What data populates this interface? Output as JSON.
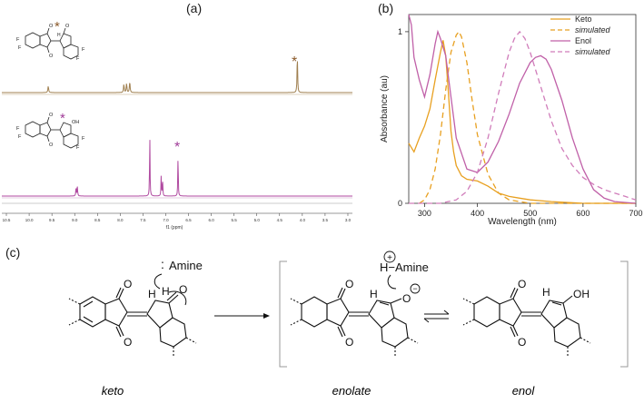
{
  "panels": {
    "a_label": "(a)",
    "b_label": "(b)",
    "c_label": "(c)"
  },
  "nmr": {
    "xlabel": "f1 (ppm)",
    "ticks": [
      "10.5",
      "10.0",
      "9.5",
      "9.0",
      "8.5",
      "8.0",
      "7.5",
      "7.0",
      "6.5",
      "6.0",
      "5.5",
      "5.0",
      "4.5",
      "4.0",
      "3.5",
      "3.0"
    ],
    "top_color": "#a08050",
    "bottom_color": "#b04aa0",
    "star_top_color": "#8b5a2b",
    "star_bottom_color": "#a03c98",
    "star": "*",
    "oh_label": "OH",
    "o_label": "O",
    "f_label": "F",
    "h_label": "H"
  },
  "chart_data": {
    "type": "line",
    "xlabel": "Wavelength (nm)",
    "ylabel": "Absorbance (au)",
    "xlim": [
      270,
      700
    ],
    "ylim": [
      0,
      1.1
    ],
    "x_ticks": [
      "300",
      "400",
      "500",
      "600",
      "700"
    ],
    "y_ticks": [
      "0",
      "1"
    ],
    "legend_position": "top-right",
    "series": [
      {
        "name": "Keto",
        "color": "#e8a020",
        "dashed": false,
        "x": [
          270,
          280,
          290,
          300,
          310,
          320,
          330,
          335,
          340,
          345,
          350,
          355,
          360,
          370,
          380,
          400,
          420,
          440,
          460,
          480,
          500,
          540,
          600,
          700
        ],
        "y": [
          0.35,
          0.3,
          0.38,
          0.45,
          0.55,
          0.72,
          0.88,
          0.95,
          0.86,
          0.65,
          0.42,
          0.3,
          0.22,
          0.16,
          0.14,
          0.13,
          0.1,
          0.06,
          0.04,
          0.03,
          0.02,
          0.01,
          0.0,
          0.0
        ]
      },
      {
        "name": "simulated",
        "color": "#e8a020",
        "dashed": true,
        "x": [
          290,
          300,
          310,
          320,
          330,
          340,
          350,
          360,
          365,
          370,
          380,
          390,
          400,
          420,
          440,
          460,
          480,
          500,
          540,
          600,
          700
        ],
        "y": [
          0.0,
          0.02,
          0.08,
          0.2,
          0.4,
          0.66,
          0.88,
          0.98,
          1.0,
          0.97,
          0.82,
          0.6,
          0.4,
          0.17,
          0.06,
          0.02,
          0.01,
          0.0,
          0.0,
          0.0,
          0.0
        ]
      },
      {
        "name": "Enol",
        "color": "#c060a8",
        "dashed": false,
        "x": [
          270,
          275,
          280,
          290,
          300,
          310,
          320,
          325,
          330,
          340,
          350,
          360,
          380,
          400,
          420,
          440,
          460,
          480,
          500,
          510,
          520,
          530,
          540,
          560,
          580,
          600,
          620,
          640,
          660,
          700
        ],
        "y": [
          1.1,
          1.04,
          0.85,
          0.72,
          0.62,
          0.75,
          0.93,
          1.0,
          0.96,
          0.86,
          0.62,
          0.38,
          0.2,
          0.18,
          0.24,
          0.36,
          0.52,
          0.7,
          0.82,
          0.85,
          0.86,
          0.84,
          0.78,
          0.6,
          0.38,
          0.2,
          0.08,
          0.03,
          0.01,
          0.0
        ]
      },
      {
        "name": "simulated",
        "color": "#d07cba",
        "dashed": true,
        "x": [
          270,
          300,
          330,
          360,
          380,
          400,
          420,
          440,
          460,
          470,
          480,
          490,
          500,
          520,
          540,
          560,
          580,
          600,
          620,
          640,
          660,
          680,
          700
        ],
        "y": [
          0.0,
          0.0,
          0.0,
          0.02,
          0.07,
          0.18,
          0.38,
          0.64,
          0.88,
          0.96,
          1.0,
          0.96,
          0.88,
          0.68,
          0.48,
          0.32,
          0.22,
          0.15,
          0.11,
          0.08,
          0.06,
          0.04,
          0.02
        ]
      }
    ]
  },
  "scheme": {
    "amine_label": "Amine",
    "h_amine_label": "H−Amine",
    "plus": "+",
    "minus": "−",
    "o_label": "O",
    "oh_label": "OH",
    "h_label": "H",
    "keto": "keto",
    "enolate": "enolate",
    "enol": "enol"
  }
}
